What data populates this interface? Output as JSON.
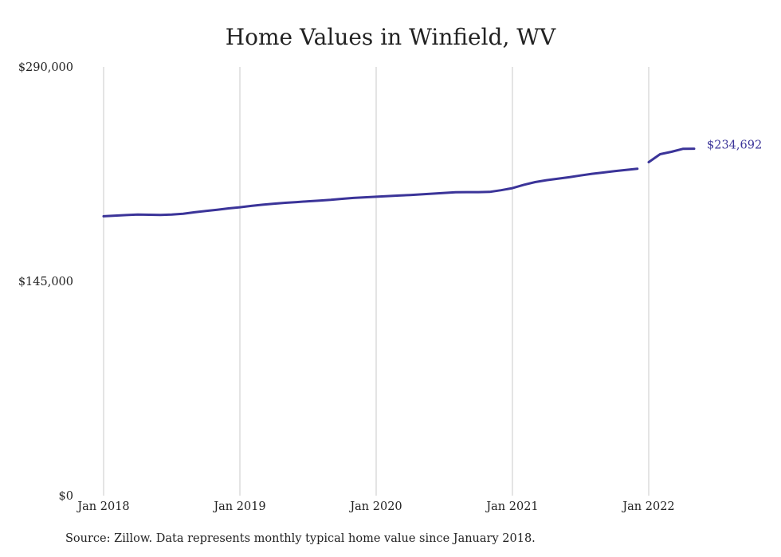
{
  "chart_data": {
    "type": "line",
    "title": "Home Values in Winfield, WV",
    "xlabel": "",
    "ylabel": "",
    "ylim": [
      0,
      290000
    ],
    "y_ticks": [
      "$290,000",
      "$145,000",
      "$0"
    ],
    "y_tick_values": [
      290000,
      145000,
      0
    ],
    "x_ticks": [
      "Jan 2018",
      "Jan 2019",
      "Jan 2020",
      "Jan 2021",
      "Jan 2022"
    ],
    "x_tick_dates": [
      "2018-01",
      "2019-01",
      "2020-01",
      "2021-01",
      "2022-01"
    ],
    "grid": "vertical",
    "line_color": "#3b3499",
    "end_label": "$234,692",
    "series": [
      {
        "points": [
          {
            "x": "2018-01",
            "y": 189000
          },
          {
            "x": "2018-02",
            "y": 189400
          },
          {
            "x": "2018-03",
            "y": 189800
          },
          {
            "x": "2018-04",
            "y": 190100
          },
          {
            "x": "2018-05",
            "y": 190000
          },
          {
            "x": "2018-06",
            "y": 189900
          },
          {
            "x": "2018-07",
            "y": 190100
          },
          {
            "x": "2018-08",
            "y": 190700
          },
          {
            "x": "2018-09",
            "y": 191700
          },
          {
            "x": "2018-10",
            "y": 192600
          },
          {
            "x": "2018-11",
            "y": 193400
          },
          {
            "x": "2018-12",
            "y": 194300
          },
          {
            "x": "2019-01",
            "y": 195100
          },
          {
            "x": "2019-02",
            "y": 196000
          },
          {
            "x": "2019-03",
            "y": 196800
          },
          {
            "x": "2019-04",
            "y": 197500
          },
          {
            "x": "2019-05",
            "y": 198100
          },
          {
            "x": "2019-06",
            "y": 198600
          },
          {
            "x": "2019-07",
            "y": 199100
          },
          {
            "x": "2019-08",
            "y": 199600
          },
          {
            "x": "2019-09",
            "y": 200100
          },
          {
            "x": "2019-10",
            "y": 200800
          },
          {
            "x": "2019-11",
            "y": 201400
          },
          {
            "x": "2019-12",
            "y": 201800
          },
          {
            "x": "2020-01",
            "y": 202200
          },
          {
            "x": "2020-02",
            "y": 202600
          },
          {
            "x": "2020-03",
            "y": 203000
          },
          {
            "x": "2020-04",
            "y": 203400
          },
          {
            "x": "2020-05",
            "y": 203800
          },
          {
            "x": "2020-06",
            "y": 204300
          },
          {
            "x": "2020-07",
            "y": 204800
          },
          {
            "x": "2020-08",
            "y": 205200
          },
          {
            "x": "2020-09",
            "y": 205300
          },
          {
            "x": "2020-10",
            "y": 205300
          },
          {
            "x": "2020-11",
            "y": 205500
          },
          {
            "x": "2020-12",
            "y": 206600
          },
          {
            "x": "2021-01",
            "y": 208000
          },
          {
            "x": "2021-02",
            "y": 210300
          },
          {
            "x": "2021-03",
            "y": 212100
          },
          {
            "x": "2021-04",
            "y": 213400
          },
          {
            "x": "2021-05",
            "y": 214400
          },
          {
            "x": "2021-06",
            "y": 215400
          },
          {
            "x": "2021-07",
            "y": 216600
          },
          {
            "x": "2021-08",
            "y": 217700
          },
          {
            "x": "2021-09",
            "y": 218600
          },
          {
            "x": "2021-10",
            "y": 219500
          },
          {
            "x": "2021-11",
            "y": 220300
          },
          {
            "x": "2021-12",
            "y": 221100
          },
          {
            "x": "2022-01",
            "y": 225600
          },
          {
            "x": "2022-02",
            "y": 231000
          },
          {
            "x": "2022-03",
            "y": 232600
          },
          {
            "x": "2022-04",
            "y": 234600
          },
          {
            "x": "2022-05",
            "y": 234692
          }
        ]
      }
    ]
  },
  "source_note": "Source: Zillow. Data represents monthly typical home value since January 2018."
}
